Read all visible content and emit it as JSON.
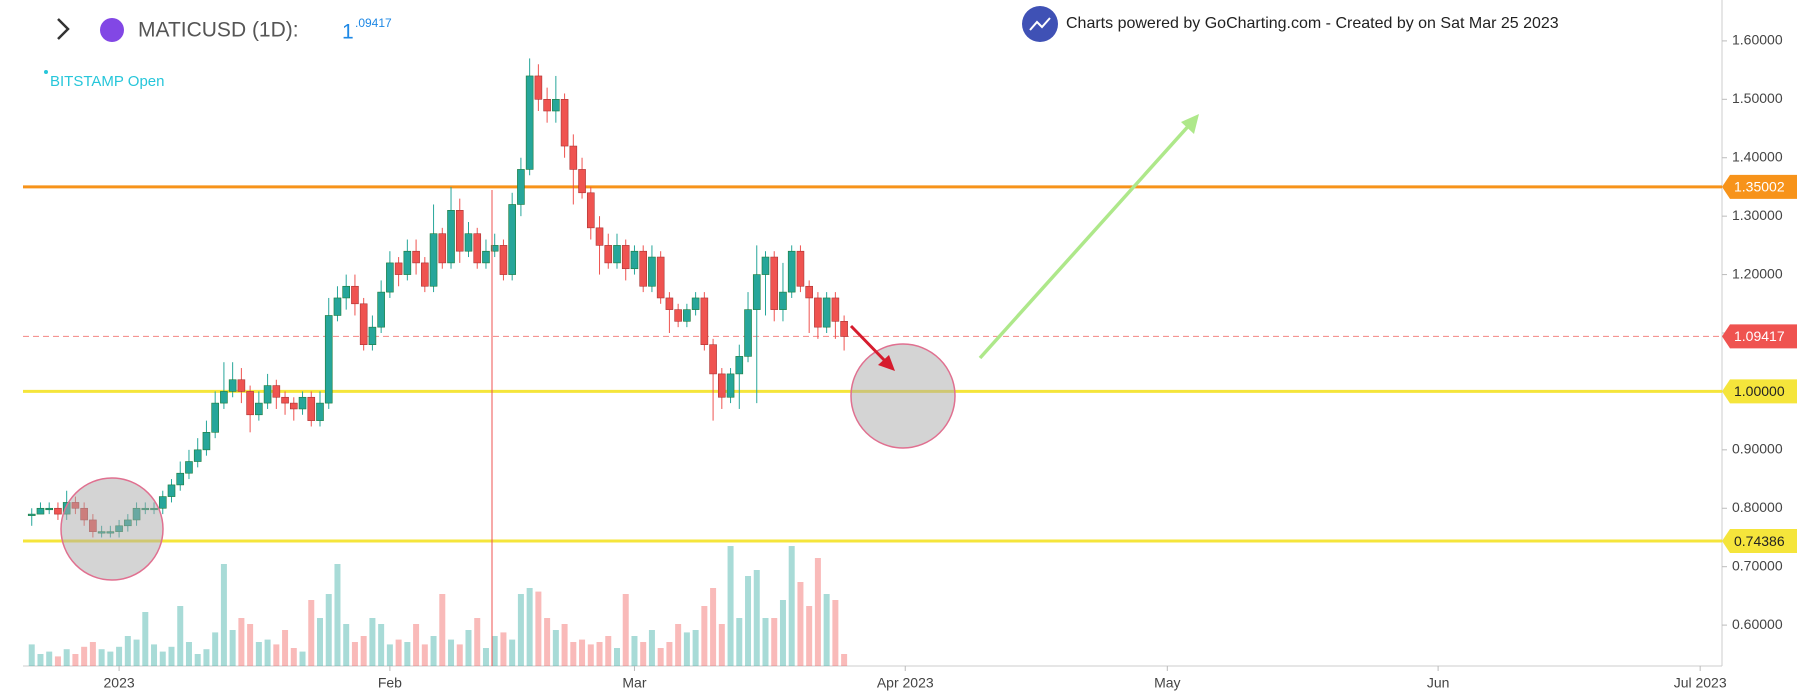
{
  "header": {
    "symbol": "MATICUSD (1D):",
    "price_whole": "1",
    "price_fraction": ".09417",
    "exchange": "BITSTAMP Open",
    "credit": "Charts powered by GoCharting.com - Created by  on Sat Mar 25 2023"
  },
  "chart_data": {
    "type": "candlestick",
    "open": [
      0.79,
      0.79,
      0.8,
      0.8,
      0.79,
      0.81,
      0.8,
      0.78,
      0.76,
      0.76,
      0.76,
      0.77,
      0.78,
      0.8,
      0.8,
      0.8,
      0.82,
      0.84,
      0.86,
      0.88,
      0.9,
      0.93,
      0.98,
      1.0,
      1.02,
      1.0,
      0.96,
      0.98,
      1.01,
      0.99,
      0.98,
      0.97,
      0.99,
      0.95,
      0.98,
      1.13,
      1.16,
      1.18,
      1.15,
      1.08,
      1.11,
      1.17,
      1.22,
      1.2,
      1.24,
      1.22,
      1.18,
      1.27,
      1.22,
      1.31,
      1.24,
      1.27,
      1.22,
      1.24,
      1.25,
      1.2,
      1.32,
      1.38,
      1.54,
      1.5,
      1.48,
      1.5,
      1.42,
      1.38,
      1.34,
      1.28,
      1.25,
      1.22,
      1.25,
      1.21,
      1.24,
      1.18,
      1.23,
      1.16,
      1.14,
      1.12,
      1.14,
      1.16,
      1.08,
      1.03,
      0.99,
      1.03,
      1.06,
      1.14,
      1.2,
      1.23,
      1.14,
      1.17,
      1.24,
      1.18,
      1.16,
      1.11,
      1.16,
      1.12
    ],
    "high": [
      0.8,
      0.81,
      0.81,
      0.81,
      0.83,
      0.82,
      0.81,
      0.79,
      0.77,
      0.77,
      0.78,
      0.79,
      0.81,
      0.81,
      0.81,
      0.83,
      0.85,
      0.88,
      0.9,
      0.92,
      0.95,
      1.0,
      1.05,
      1.05,
      1.04,
      1.01,
      1.0,
      1.03,
      1.02,
      1.0,
      0.99,
      1.0,
      1.0,
      1.0,
      1.16,
      1.18,
      1.2,
      1.2,
      1.16,
      1.13,
      1.19,
      1.24,
      1.23,
      1.26,
      1.26,
      1.23,
      1.32,
      1.28,
      1.35,
      1.33,
      1.29,
      1.28,
      1.26,
      1.27,
      1.26,
      1.34,
      1.4,
      1.57,
      1.56,
      1.52,
      1.54,
      1.51,
      1.44,
      1.4,
      1.35,
      1.3,
      1.27,
      1.27,
      1.26,
      1.25,
      1.25,
      1.25,
      1.24,
      1.17,
      1.15,
      1.15,
      1.17,
      1.17,
      1.09,
      1.04,
      1.04,
      1.08,
      1.17,
      1.25,
      1.24,
      1.24,
      1.22,
      1.25,
      1.25,
      1.19,
      1.17,
      1.17,
      1.17,
      1.13
    ],
    "low": [
      0.77,
      0.79,
      0.79,
      0.78,
      0.78,
      0.79,
      0.77,
      0.75,
      0.75,
      0.75,
      0.75,
      0.76,
      0.77,
      0.79,
      0.79,
      0.79,
      0.81,
      0.83,
      0.85,
      0.87,
      0.89,
      0.92,
      0.97,
      0.99,
      0.98,
      0.93,
      0.95,
      0.97,
      0.97,
      0.96,
      0.95,
      0.96,
      0.94,
      0.94,
      0.97,
      1.12,
      1.14,
      1.13,
      1.07,
      1.07,
      1.1,
      1.16,
      1.18,
      1.19,
      1.2,
      1.17,
      1.17,
      1.21,
      1.21,
      1.22,
      1.23,
      1.21,
      1.21,
      1.23,
      1.19,
      1.19,
      1.3,
      1.37,
      1.48,
      1.46,
      1.46,
      1.4,
      1.32,
      1.33,
      1.26,
      1.2,
      1.21,
      1.21,
      1.19,
      1.2,
      1.17,
      1.17,
      1.15,
      1.1,
      1.11,
      1.11,
      1.13,
      1.07,
      0.95,
      0.97,
      0.98,
      0.97,
      1.05,
      0.98,
      1.13,
      1.12,
      1.12,
      1.16,
      1.17,
      1.1,
      1.09,
      1.1,
      1.09,
      1.07
    ],
    "close": [
      0.79,
      0.8,
      0.8,
      0.79,
      0.81,
      0.8,
      0.78,
      0.76,
      0.76,
      0.76,
      0.77,
      0.78,
      0.8,
      0.8,
      0.8,
      0.82,
      0.84,
      0.86,
      0.88,
      0.9,
      0.93,
      0.98,
      1.0,
      1.02,
      1.0,
      0.96,
      0.98,
      1.01,
      0.99,
      0.98,
      0.97,
      0.99,
      0.95,
      0.98,
      1.13,
      1.16,
      1.18,
      1.15,
      1.08,
      1.11,
      1.17,
      1.22,
      1.2,
      1.24,
      1.22,
      1.18,
      1.27,
      1.22,
      1.31,
      1.24,
      1.27,
      1.22,
      1.24,
      1.25,
      1.2,
      1.32,
      1.38,
      1.54,
      1.5,
      1.48,
      1.5,
      1.42,
      1.38,
      1.34,
      1.28,
      1.25,
      1.22,
      1.25,
      1.21,
      1.24,
      1.18,
      1.23,
      1.16,
      1.14,
      1.12,
      1.14,
      1.16,
      1.08,
      1.03,
      0.99,
      1.03,
      1.06,
      1.14,
      1.2,
      1.23,
      1.14,
      1.17,
      1.24,
      1.18,
      1.16,
      1.11,
      1.16,
      1.12,
      1.094
    ],
    "volume": [
      18,
      10,
      12,
      8,
      14,
      10,
      16,
      20,
      14,
      12,
      16,
      25,
      22,
      45,
      18,
      12,
      16,
      50,
      20,
      10,
      14,
      28,
      85,
      30,
      40,
      35,
      20,
      22,
      18,
      30,
      15,
      12,
      55,
      40,
      60,
      85,
      35,
      20,
      25,
      40,
      35,
      18,
      22,
      20,
      35,
      18,
      25,
      60,
      22,
      18,
      30,
      40,
      15,
      25,
      28,
      22,
      60,
      65,
      62,
      40,
      30,
      35,
      20,
      22,
      18,
      20,
      25,
      15,
      60,
      25,
      20,
      30,
      15,
      20,
      35,
      28,
      30,
      50,
      65,
      35,
      100,
      40,
      75,
      80,
      40,
      40,
      55,
      100,
      70,
      50,
      90,
      60,
      55,
      10
    ],
    "up_color": "#26a69a",
    "down_color": "#ef5350",
    "xlim": [
      -1,
      193.5
    ],
    "xticks": [
      {
        "value": 10,
        "label": "2023"
      },
      {
        "value": 41,
        "label": "Feb"
      },
      {
        "value": 69,
        "label": "Mar"
      },
      {
        "value": 100,
        "label": "Apr 2023"
      },
      {
        "value": 130,
        "label": "May"
      },
      {
        "value": 161,
        "label": "Jun"
      },
      {
        "value": 191,
        "label": "Jul 2023"
      }
    ],
    "ylim": [
      0.53,
      1.67
    ],
    "yticks": [
      {
        "value": 0.6,
        "label": "0.60000"
      },
      {
        "value": 0.7,
        "label": "0.70000"
      },
      {
        "value": 0.8,
        "label": "0.80000"
      },
      {
        "value": 0.9,
        "label": "0.90000"
      },
      {
        "value": 1.0,
        "label": "1.00000"
      },
      {
        "value": 1.1,
        "label": "1.10000"
      },
      {
        "value": 1.2,
        "label": "1.20000"
      },
      {
        "value": 1.3,
        "label": "1.30000"
      },
      {
        "value": 1.4,
        "label": "1.40000"
      },
      {
        "value": 1.5,
        "label": "1.50000"
      },
      {
        "value": 1.6,
        "label": "1.60000"
      }
    ],
    "hlines": [
      {
        "value": 1.35002,
        "label": "1.35002",
        "color": "#f7931a",
        "dashed": false
      },
      {
        "value": 1.09417,
        "label": "1.09417",
        "color": "#ef5350",
        "dashed": true
      },
      {
        "value": 1.0,
        "label": "1.00000",
        "color": "#f5e53b",
        "dashed": false
      },
      {
        "value": 0.74386,
        "label": "0.74386",
        "color": "#f5e53b",
        "dashed": false
      }
    ]
  }
}
